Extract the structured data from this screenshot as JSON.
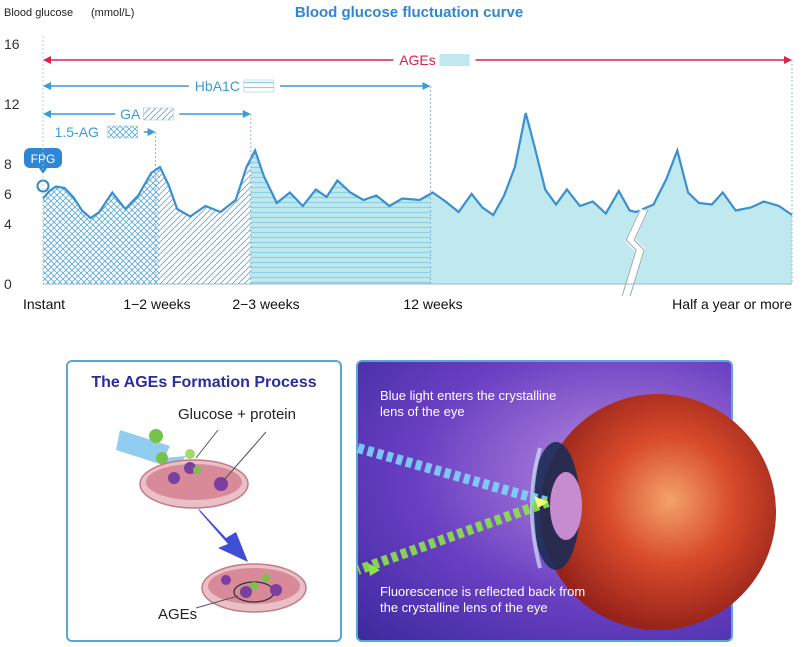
{
  "chart_data": {
    "type": "area",
    "title": "Blood glucose fluctuation curve",
    "ylabel": "Blood glucose",
    "yunit": "(mmol/L)",
    "ylim": [
      0,
      16
    ],
    "yticks": [
      "0",
      "4",
      "6",
      "8",
      "12",
      "16"
    ],
    "xticks": [
      "Instant",
      "1−2 weeks",
      "2−3 weeks",
      "12 weeks",
      "Half a year or more"
    ],
    "grid": false,
    "series": [
      {
        "points": [
          [
            0,
            5.7
          ],
          [
            0.3,
            6.2
          ],
          [
            0.6,
            6.5
          ],
          [
            1,
            6.4
          ],
          [
            1.4,
            5.8
          ],
          [
            1.8,
            4.9
          ],
          [
            2.2,
            4.4
          ],
          [
            2.6,
            4.8
          ],
          [
            3.2,
            6.1
          ],
          [
            3.8,
            5.0
          ],
          [
            4.4,
            5.9
          ],
          [
            5.0,
            7.4
          ],
          [
            5.4,
            7.8
          ],
          [
            5.8,
            6.6
          ],
          [
            6.2,
            5.0
          ],
          [
            6.8,
            4.5
          ],
          [
            7.5,
            5.2
          ],
          [
            8.2,
            4.8
          ],
          [
            8.9,
            5.6
          ],
          [
            9.4,
            7.8
          ],
          [
            9.8,
            8.9
          ],
          [
            10.2,
            7.2
          ],
          [
            10.8,
            5.4
          ],
          [
            11.4,
            6.1
          ],
          [
            12.0,
            5.2
          ],
          [
            12.6,
            6.3
          ],
          [
            13.1,
            5.8
          ],
          [
            13.6,
            6.9
          ],
          [
            14.2,
            6.1
          ],
          [
            14.8,
            5.6
          ],
          [
            15.4,
            5.9
          ],
          [
            16.0,
            5.2
          ],
          [
            16.6,
            5.7
          ],
          [
            17.4,
            5.6
          ],
          [
            18.0,
            6.1
          ],
          [
            18.6,
            5.5
          ],
          [
            19.2,
            4.8
          ],
          [
            19.8,
            6.0
          ],
          [
            20.3,
            5.1
          ],
          [
            20.8,
            4.6
          ],
          [
            21.3,
            5.9
          ],
          [
            21.8,
            7.8
          ],
          [
            22.3,
            11.4
          ],
          [
            22.7,
            9.2
          ],
          [
            23.2,
            6.3
          ],
          [
            23.7,
            5.3
          ],
          [
            24.2,
            6.3
          ],
          [
            24.8,
            5.2
          ],
          [
            25.4,
            5.5
          ],
          [
            26.0,
            4.7
          ],
          [
            26.6,
            6.2
          ],
          [
            27.1,
            4.9
          ],
          [
            27.4,
            4.8
          ],
          [
            28.2,
            5.3
          ],
          [
            28.8,
            7.0
          ],
          [
            29.3,
            8.9
          ],
          [
            29.8,
            6.1
          ],
          [
            30.3,
            5.4
          ],
          [
            30.9,
            5.3
          ],
          [
            31.4,
            6.1
          ],
          [
            32.0,
            4.9
          ],
          [
            32.7,
            5.1
          ],
          [
            33.3,
            5.5
          ],
          [
            34.0,
            5.2
          ],
          [
            34.6,
            4.6
          ]
        ]
      }
    ],
    "x_events": [
      {
        "label": "FPG",
        "x": 0
      },
      {
        "label": "1.5-AG",
        "x": 5.2
      },
      {
        "label": "GA",
        "x": 9.6
      },
      {
        "label": "HbA1C",
        "x": 17.9
      },
      {
        "label": "AGEs",
        "x": 34.6
      }
    ],
    "axis_break_x": 27.4
  },
  "ages_panel": {
    "title": "The AGEs Formation Process",
    "label_top": "Glucose + protein",
    "label_bottom": "AGEs"
  },
  "eye_panel": {
    "text_top": "Blue light enters the crystalline lens of the eye",
    "text_bottom": "Fluorescence is reflected back from the crystalline lens of the eye"
  },
  "colors": {
    "curve": "#3a8fd0",
    "fill": "#bfe9ef",
    "ages_arrow": "#d8234a",
    "title": "#2f86d2"
  }
}
